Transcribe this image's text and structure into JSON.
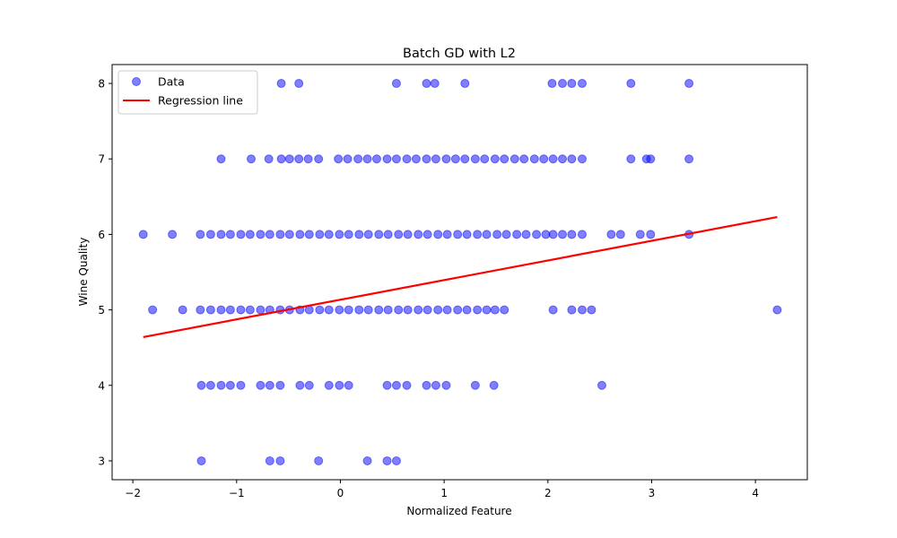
{
  "chart_data": {
    "type": "scatter",
    "title": "Batch GD with L2",
    "xlabel": "Normalized Feature",
    "ylabel": "Wine Quality",
    "xlim": [
      -2.2,
      4.5
    ],
    "ylim": [
      2.75,
      8.25
    ],
    "xticks": [
      -2,
      -1,
      0,
      1,
      2,
      3,
      4
    ],
    "xtick_labels": [
      "−2",
      "−1",
      "0",
      "1",
      "2",
      "3",
      "4"
    ],
    "yticks": [
      3,
      4,
      5,
      6,
      7,
      8
    ],
    "ytick_labels": [
      "3",
      "4",
      "5",
      "6",
      "7",
      "8"
    ],
    "grid": false,
    "legend_position": "top-left",
    "series": [
      {
        "name": "Data",
        "kind": "scatter",
        "color": "#0000ff",
        "alpha": 0.5,
        "points": [
          [
            -0.57,
            8
          ],
          [
            -0.4,
            8
          ],
          [
            0.54,
            8
          ],
          [
            0.83,
            8
          ],
          [
            0.91,
            8
          ],
          [
            1.2,
            8
          ],
          [
            2.04,
            8
          ],
          [
            2.14,
            8
          ],
          [
            2.23,
            8
          ],
          [
            2.33,
            8
          ],
          [
            2.8,
            8
          ],
          [
            3.36,
            8
          ],
          [
            -1.15,
            7
          ],
          [
            -0.86,
            7
          ],
          [
            -0.69,
            7
          ],
          [
            -0.57,
            7
          ],
          [
            -0.49,
            7
          ],
          [
            -0.4,
            7
          ],
          [
            -0.31,
            7
          ],
          [
            -0.21,
            7
          ],
          [
            -0.02,
            7
          ],
          [
            0.07,
            7
          ],
          [
            0.17,
            7
          ],
          [
            0.26,
            7
          ],
          [
            0.35,
            7
          ],
          [
            0.45,
            7
          ],
          [
            0.54,
            7
          ],
          [
            0.64,
            7
          ],
          [
            0.73,
            7
          ],
          [
            0.83,
            7
          ],
          [
            0.92,
            7
          ],
          [
            1.02,
            7
          ],
          [
            1.11,
            7
          ],
          [
            1.2,
            7
          ],
          [
            1.3,
            7
          ],
          [
            1.39,
            7
          ],
          [
            1.49,
            7
          ],
          [
            1.58,
            7
          ],
          [
            1.68,
            7
          ],
          [
            1.77,
            7
          ],
          [
            1.87,
            7
          ],
          [
            1.96,
            7
          ],
          [
            2.05,
            7
          ],
          [
            2.14,
            7
          ],
          [
            2.23,
            7
          ],
          [
            2.33,
            7
          ],
          [
            2.8,
            7
          ],
          [
            2.95,
            7
          ],
          [
            2.99,
            7
          ],
          [
            3.36,
            7
          ],
          [
            -1.9,
            6
          ],
          [
            -1.62,
            6
          ],
          [
            -1.35,
            6
          ],
          [
            -1.25,
            6
          ],
          [
            -1.15,
            6
          ],
          [
            -1.06,
            6
          ],
          [
            -0.96,
            6
          ],
          [
            -0.87,
            6
          ],
          [
            -0.77,
            6
          ],
          [
            -0.68,
            6
          ],
          [
            -0.58,
            6
          ],
          [
            -0.49,
            6
          ],
          [
            -0.39,
            6
          ],
          [
            -0.3,
            6
          ],
          [
            -0.2,
            6
          ],
          [
            -0.11,
            6
          ],
          [
            -0.01,
            6
          ],
          [
            0.08,
            6
          ],
          [
            0.18,
            6
          ],
          [
            0.27,
            6
          ],
          [
            0.37,
            6
          ],
          [
            0.46,
            6
          ],
          [
            0.56,
            6
          ],
          [
            0.65,
            6
          ],
          [
            0.75,
            6
          ],
          [
            0.84,
            6
          ],
          [
            0.94,
            6
          ],
          [
            1.03,
            6
          ],
          [
            1.13,
            6
          ],
          [
            1.22,
            6
          ],
          [
            1.32,
            6
          ],
          [
            1.41,
            6
          ],
          [
            1.51,
            6
          ],
          [
            1.6,
            6
          ],
          [
            1.7,
            6
          ],
          [
            1.79,
            6
          ],
          [
            1.89,
            6
          ],
          [
            1.98,
            6
          ],
          [
            2.05,
            6
          ],
          [
            2.14,
            6
          ],
          [
            2.23,
            6
          ],
          [
            2.33,
            6
          ],
          [
            2.61,
            6
          ],
          [
            2.7,
            6
          ],
          [
            2.89,
            6
          ],
          [
            2.99,
            6
          ],
          [
            3.36,
            6
          ],
          [
            -1.81,
            5
          ],
          [
            -1.52,
            5
          ],
          [
            -1.35,
            5
          ],
          [
            -1.25,
            5
          ],
          [
            -1.15,
            5
          ],
          [
            -1.06,
            5
          ],
          [
            -0.96,
            5
          ],
          [
            -0.87,
            5
          ],
          [
            -0.77,
            5
          ],
          [
            -0.68,
            5
          ],
          [
            -0.58,
            5
          ],
          [
            -0.49,
            5
          ],
          [
            -0.39,
            5
          ],
          [
            -0.3,
            5
          ],
          [
            -0.2,
            5
          ],
          [
            -0.11,
            5
          ],
          [
            -0.01,
            5
          ],
          [
            0.08,
            5
          ],
          [
            0.18,
            5
          ],
          [
            0.27,
            5
          ],
          [
            0.37,
            5
          ],
          [
            0.46,
            5
          ],
          [
            0.56,
            5
          ],
          [
            0.65,
            5
          ],
          [
            0.75,
            5
          ],
          [
            0.84,
            5
          ],
          [
            0.94,
            5
          ],
          [
            1.03,
            5
          ],
          [
            1.13,
            5
          ],
          [
            1.22,
            5
          ],
          [
            1.32,
            5
          ],
          [
            1.41,
            5
          ],
          [
            1.49,
            5
          ],
          [
            1.58,
            5
          ],
          [
            2.05,
            5
          ],
          [
            2.23,
            5
          ],
          [
            2.33,
            5
          ],
          [
            2.42,
            5
          ],
          [
            4.21,
            5
          ],
          [
            -1.34,
            4
          ],
          [
            -1.25,
            4
          ],
          [
            -1.15,
            4
          ],
          [
            -1.06,
            4
          ],
          [
            -0.96,
            4
          ],
          [
            -0.77,
            4
          ],
          [
            -0.68,
            4
          ],
          [
            -0.58,
            4
          ],
          [
            -0.39,
            4
          ],
          [
            -0.3,
            4
          ],
          [
            -0.11,
            4
          ],
          [
            -0.01,
            4
          ],
          [
            0.08,
            4
          ],
          [
            0.45,
            4
          ],
          [
            0.54,
            4
          ],
          [
            0.64,
            4
          ],
          [
            0.83,
            4
          ],
          [
            0.92,
            4
          ],
          [
            1.02,
            4
          ],
          [
            1.3,
            4
          ],
          [
            1.48,
            4
          ],
          [
            2.52,
            4
          ],
          [
            -1.34,
            3
          ],
          [
            -0.68,
            3
          ],
          [
            -0.58,
            3
          ],
          [
            -0.21,
            3
          ],
          [
            0.26,
            3
          ],
          [
            0.45,
            3
          ],
          [
            0.54,
            3
          ]
        ]
      },
      {
        "name": "Regression line",
        "kind": "line",
        "color": "#ff0000",
        "points": [
          [
            -1.9,
            4.64
          ],
          [
            4.21,
            6.23
          ]
        ]
      }
    ]
  }
}
